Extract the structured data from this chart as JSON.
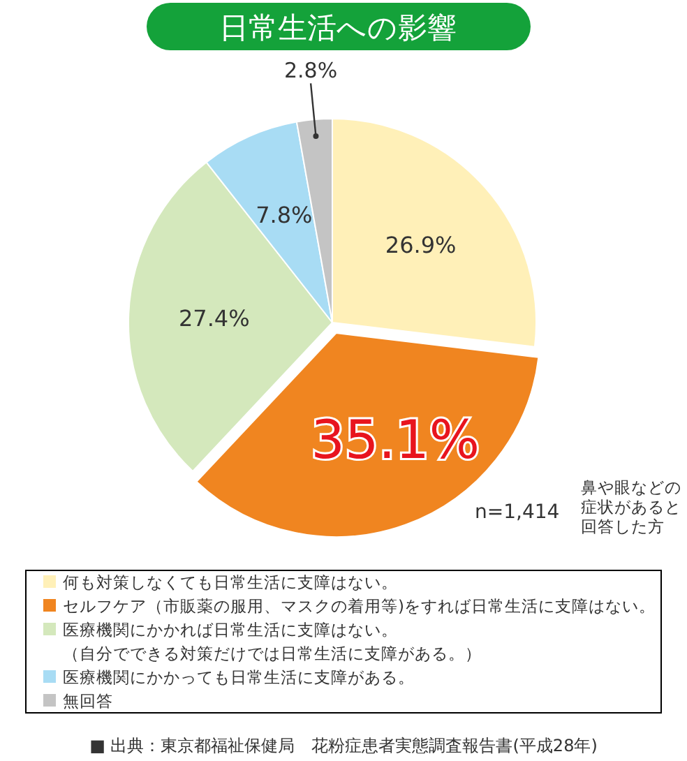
{
  "chart_data": {
    "type": "pie",
    "title": "日常生活への影響",
    "categories": [
      "何も対策しなくても日常生活に支障はない。",
      "セルフケア（市販薬の服用、マスクの着用等)をすれば日常生活に支障はない。",
      "医療機関にかかれば日常生活に支障はない。（自分でできる対策だけでは日常生活に支障がある。）",
      "医療機関にかかっても日常生活に支障がある。",
      "無回答"
    ],
    "values": [
      26.9,
      35.1,
      27.4,
      7.8,
      2.8
    ],
    "colors": [
      "#fff0b8",
      "#f08520",
      "#d4e8bc",
      "#a8dcf4",
      "#c4c4c4"
    ],
    "value_labels": [
      "26.9%",
      "35.1%",
      "27.4%",
      "7.8%",
      "2.8%"
    ],
    "legend": "bottom",
    "annotations": [
      "n=1,414",
      "鼻や眼などの症状があると回答した方",
      "■ 出典：東京都福祉保健局　花粉症患者実態調査報告書(平成28年)"
    ]
  }
}
